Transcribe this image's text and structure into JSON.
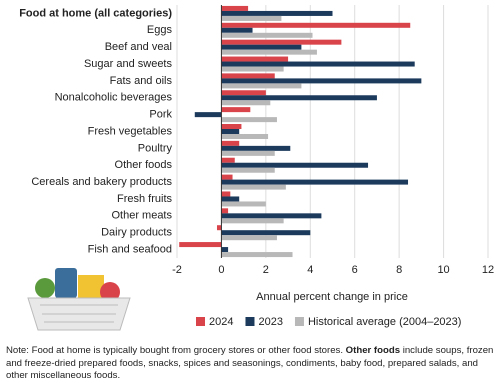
{
  "chart_data": {
    "type": "hbar",
    "xlabel": "Annual percent change in price",
    "categories": [
      "Food at home (all categories)",
      "Eggs",
      "Beef and veal",
      "Sugar and sweets",
      "Fats and oils",
      "Nonalcoholic beverages",
      "Pork",
      "Fresh vegetables",
      "Poultry",
      "Other foods",
      "Cereals and bakery products",
      "Fresh fruits",
      "Other meats",
      "Dairy products",
      "Fish and seafood"
    ],
    "series": [
      {
        "name": "2024",
        "color": "#d9434a",
        "values": [
          1.2,
          8.5,
          5.4,
          3.0,
          2.4,
          2.0,
          1.3,
          0.9,
          0.8,
          0.6,
          0.5,
          0.4,
          0.3,
          -0.2,
          -1.9
        ]
      },
      {
        "name": "2023",
        "color": "#1b3a5c",
        "values": [
          5.0,
          1.4,
          3.6,
          8.7,
          9.0,
          7.0,
          -1.2,
          0.8,
          3.1,
          6.6,
          8.4,
          0.8,
          4.5,
          4.0,
          0.3
        ]
      },
      {
        "name": "Historical average (2004–2023)",
        "color": "#b8b8b8",
        "values": [
          2.7,
          4.1,
          4.3,
          2.8,
          3.6,
          2.2,
          2.5,
          2.1,
          2.4,
          2.4,
          2.9,
          2.0,
          2.8,
          2.5,
          3.2
        ]
      }
    ],
    "xlim": [
      -2,
      12
    ],
    "xticks": [
      -2,
      0,
      2,
      4,
      6,
      8,
      10,
      12
    ],
    "grid": true,
    "note": [
      "Note: Food at home is typically bought from grocery stores or other food stores. ",
      "Other foods",
      " include soups, frozen and freeze-dried prepared foods, snacks, spices and seasonings, condiments, baby food, prepared salads, and other miscellaneous foods."
    ]
  }
}
